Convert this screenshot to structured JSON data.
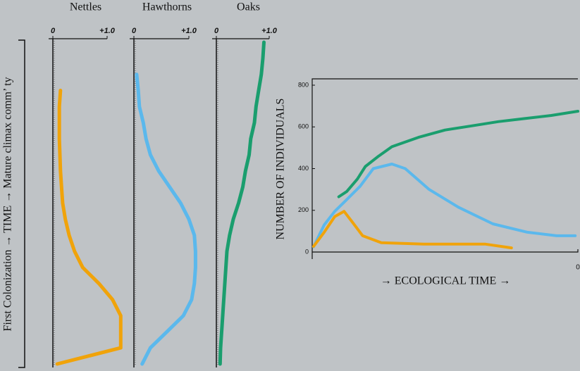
{
  "chart_data": [
    {
      "type": "profile",
      "title": "Nettles",
      "ylabel": "First Colonization → TIME → Mature climax comm’ ty",
      "xlim": [
        0,
        1
      ],
      "xticks": [
        0,
        {
          "value": 1,
          "label": "+1.0"
        }
      ],
      "series": [
        {
          "color": "#f0a30a",
          "values": [
            0.08,
            1.25,
            1.25,
            1.25,
            1.1,
            0.85,
            0.55,
            0.4,
            0.3,
            0.23,
            0.18,
            0.16,
            0.14,
            0.13,
            0.12,
            0.12,
            0.12,
            0.14,
            null,
            null,
            null
          ]
        }
      ]
    },
    {
      "type": "profile",
      "title": "Hawthorns",
      "xlim": [
        0,
        1
      ],
      "xticks": [
        0,
        {
          "value": 1,
          "label": "+1.0"
        }
      ],
      "series": [
        {
          "color": "#5bb8ec",
          "values": [
            0.15,
            0.3,
            0.6,
            0.9,
            1.05,
            1.1,
            1.12,
            1.12,
            1.1,
            1.0,
            0.85,
            0.65,
            0.45,
            0.3,
            0.22,
            0.17,
            0.1,
            0.08,
            0.05,
            null,
            null
          ]
        }
      ]
    },
    {
      "type": "profile",
      "title": "Oaks",
      "xlim": [
        0,
        1
      ],
      "xticks": [
        0,
        {
          "value": 1,
          "label": "+1.0"
        }
      ],
      "series": [
        {
          "color": "#1a9e6e",
          "values": [
            0.07,
            0.08,
            0.1,
            0.12,
            0.14,
            0.16,
            0.18,
            0.2,
            0.25,
            0.32,
            0.42,
            0.5,
            0.55,
            0.62,
            0.65,
            0.72,
            0.75,
            0.8,
            0.85,
            0.88,
            0.9
          ]
        }
      ]
    },
    {
      "type": "line",
      "ylabel": "NUMBER OF INDIVIDUALS",
      "xlabel": "→ ECOLOGICAL TIME →",
      "corner_label": "0",
      "xlim": [
        0,
        100
      ],
      "ylim": [
        0,
        800
      ],
      "yticks": [
        0,
        200,
        400,
        600,
        800
      ],
      "series": [
        {
          "color": "#1a9e6e",
          "x": [
            10,
            13,
            17,
            20,
            25,
            30,
            40,
            50,
            60,
            70,
            80,
            90,
            100
          ],
          "values": [
            265,
            290,
            350,
            410,
            460,
            505,
            550,
            585,
            605,
            625,
            640,
            655,
            675
          ]
        },
        {
          "color": "#5bb8ec",
          "x": [
            0.5,
            4.5,
            8.5,
            12.5,
            18,
            23,
            30,
            35,
            44,
            55,
            68,
            81,
            92,
            99
          ],
          "values": [
            25,
            130,
            195,
            245,
            315,
            400,
            422,
            400,
            300,
            215,
            135,
            95,
            78,
            78
          ]
        },
        {
          "color": "#f0a30a",
          "x": [
            0.5,
            4.5,
            8.5,
            12,
            15,
            19,
            26,
            42,
            65,
            75
          ],
          "values": [
            27,
            95,
            170,
            195,
            145,
            78,
            45,
            38,
            38,
            20
          ]
        }
      ]
    }
  ]
}
